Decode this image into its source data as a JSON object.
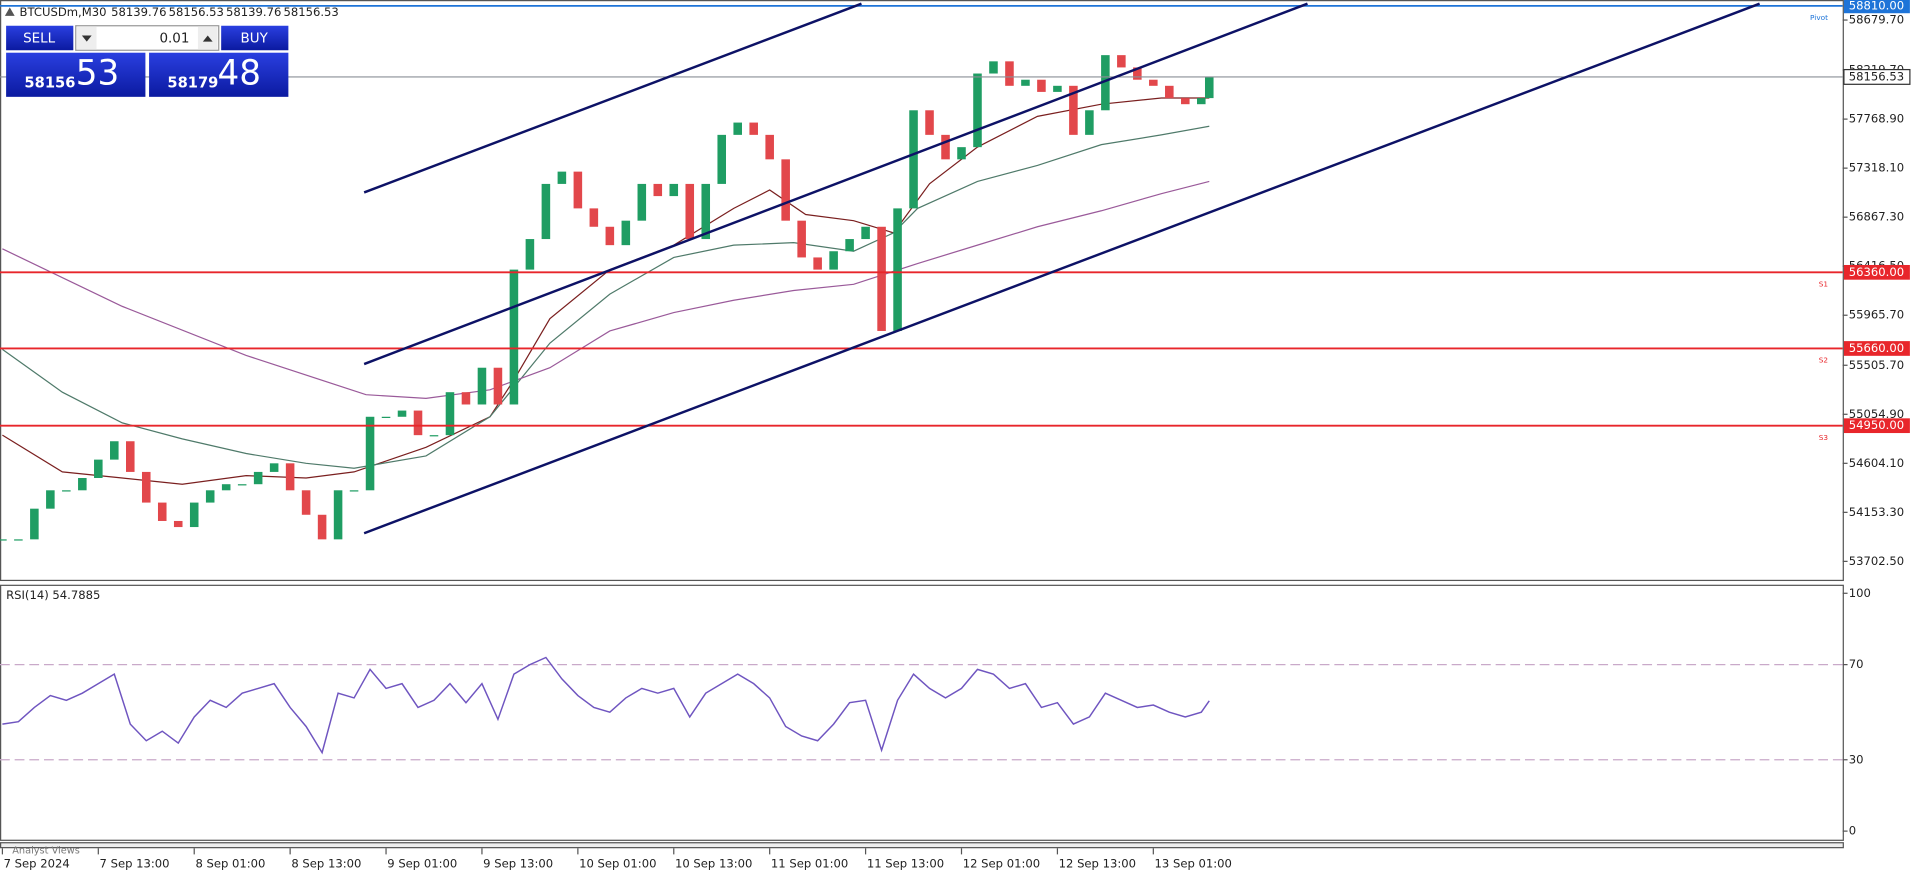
{
  "header": {
    "symbol": "BTCUSDm,M30",
    "ohlc": [
      58139.76,
      58156.53,
      58139.76,
      58156.53
    ]
  },
  "trade_panel": {
    "sell": "SELL",
    "buy": "BUY",
    "volume": "0.01",
    "bid_big": "58156",
    "bid_small": "53",
    "ask_big": "58179",
    "ask_small": "48"
  },
  "footer": "Analyst Views",
  "chart_data": [
    {
      "type": "candlestick",
      "x": [
        0,
        4,
        8,
        12,
        16,
        20,
        24,
        28,
        32,
        36,
        40,
        44,
        48,
        52,
        56,
        60,
        64,
        68,
        72,
        76,
        80,
        84,
        88,
        92,
        96,
        100,
        104,
        108,
        112,
        116,
        120,
        124,
        128,
        132,
        136,
        140,
        144,
        148,
        152,
        156,
        160,
        164,
        168,
        172,
        176,
        180,
        184,
        188,
        192,
        196,
        200,
        204,
        208,
        212,
        216,
        220,
        224,
        228,
        232,
        236,
        240,
        244,
        248,
        252,
        256,
        260,
        264,
        268,
        272,
        276,
        280,
        284,
        288,
        292,
        296,
        300,
        302
      ],
      "series": [
        {
          "up_color": "#1f9d63",
          "down_color": "#e2474b",
          "values": [
            53905,
            53905,
            54187,
            54356,
            54356,
            54469,
            54638,
            54807,
            54525,
            54243,
            54074,
            54018,
            54243,
            54356,
            54412,
            54412,
            54525,
            54604,
            54356,
            54131,
            53905,
            54356,
            54356,
            55032,
            55032,
            55089,
            54863,
            54863,
            55258,
            55145,
            55483,
            55145,
            56385,
            56666,
            57173,
            57286,
            56948,
            56779,
            56610,
            56835,
            57173,
            57061,
            57173,
            56666,
            57173,
            57624,
            57737,
            57624,
            57399,
            56835,
            56497,
            56385,
            56554,
            56666,
            56779,
            55821,
            56948,
            57850,
            57624,
            57399,
            57511,
            58188,
            58300,
            58075,
            58131,
            58019,
            58075,
            57624,
            57850,
            58357,
            58244,
            58131,
            58075,
            57962,
            57906,
            57962,
            58156.53
          ]
        }
      ],
      "overlays": [
        {
          "color": "#7a1f1f",
          "x": [
            0,
            15,
            30,
            45,
            61,
            76,
            88,
            106,
            122,
            128,
            137,
            152,
            168,
            183,
            192,
            201,
            213,
            223,
            232,
            244,
            259,
            275,
            290,
            302
          ],
          "values": [
            54863,
            54525,
            54469,
            54412,
            54491,
            54469,
            54525,
            54751,
            55032,
            55371,
            55934,
            56385,
            56610,
            56948,
            57117,
            56892,
            56835,
            56723,
            57174,
            57512,
            57794,
            57906,
            57963,
            57963
          ]
        },
        {
          "color": "#4f7a6a",
          "x": [
            0,
            15,
            30,
            45,
            61,
            76,
            88,
            106,
            122,
            137,
            152,
            168,
            183,
            198,
            213,
            223,
            229,
            244,
            259,
            275,
            290,
            302
          ],
          "values": [
            55652,
            55258,
            54976,
            54829,
            54694,
            54604,
            54559,
            54672,
            55032,
            55709,
            56160,
            56497,
            56610,
            56633,
            56554,
            56723,
            56948,
            57196,
            57343,
            57534,
            57624,
            57703
          ]
        },
        {
          "color": "#9a5a9a",
          "x": [
            0,
            30,
            61,
            91,
            106,
            122,
            137,
            152,
            168,
            183,
            198,
            213,
            229,
            244,
            259,
            275,
            290,
            302
          ],
          "values": [
            56576,
            56047,
            55596,
            55235,
            55201,
            55280,
            55483,
            55821,
            55990,
            56103,
            56193,
            56250,
            56441,
            56610,
            56779,
            56926,
            57083,
            57196
          ]
        }
      ],
      "xlim": [
        -0.6,
        460.5
      ],
      "xticks": [
        {
          "value": 0,
          "label": "7 Sep 2024"
        },
        {
          "value": 24,
          "label": "7 Sep 13:00"
        },
        {
          "value": 48,
          "label": "8 Sep 01:00"
        },
        {
          "value": 72,
          "label": "8 Sep 13:00"
        },
        {
          "value": 96,
          "label": "9 Sep 01:00"
        },
        {
          "value": 120,
          "label": "9 Sep 13:00"
        },
        {
          "value": 144,
          "label": "10 Sep 01:00"
        },
        {
          "value": 168,
          "label": "10 Sep 13:00"
        },
        {
          "value": 192,
          "label": "11 Sep 01:00"
        },
        {
          "value": 216,
          "label": "11 Sep 13:00"
        },
        {
          "value": 240,
          "label": "12 Sep 01:00"
        },
        {
          "value": 264,
          "label": "12 Sep 13:00"
        },
        {
          "value": 288,
          "label": "13 Sep 01:00"
        }
      ],
      "ylim": [
        53533,
        58864
      ],
      "yticks": [
        {
          "value": 58679.7,
          "label": "58679.70"
        },
        {
          "value": 58219.7,
          "label": "58219.70"
        },
        {
          "value": 57768.9,
          "label": "57768.90"
        },
        {
          "value": 57318.1,
          "label": "57318.10"
        },
        {
          "value": 56867.3,
          "label": "56867.30"
        },
        {
          "value": 56416.5,
          "label": "56416.50"
        },
        {
          "value": 55965.7,
          "label": "55965.70"
        },
        {
          "value": 55505.7,
          "label": "55505.70"
        },
        {
          "value": 55054.9,
          "label": "55054.90"
        },
        {
          "value": 54604.1,
          "label": "54604.10"
        },
        {
          "value": 54153.3,
          "label": "54153.30"
        },
        {
          "value": 53702.5,
          "label": "53702.50"
        }
      ],
      "levels": [
        {
          "value": 58810,
          "label": "58810.00",
          "name": "Pivot",
          "color": "#1e74d8"
        },
        {
          "value": 56360,
          "label": "56360.00",
          "name": "S1",
          "color": "#e8262b"
        },
        {
          "value": 55660,
          "label": "55660.00",
          "name": "S2",
          "color": "#e8262b"
        },
        {
          "value": 54950,
          "label": "54950.00",
          "name": "S3",
          "color": "#e8262b"
        }
      ],
      "last": 58156.53,
      "last_color": "#8a8f96"
    },
    {
      "type": "line",
      "title": "RSI(14) 54.7885",
      "x": [
        0,
        4,
        8,
        12,
        16,
        20,
        24,
        28,
        32,
        36,
        40,
        44,
        48,
        52,
        56,
        60,
        64,
        68,
        72,
        76,
        80,
        84,
        88,
        92,
        96,
        100,
        104,
        108,
        112,
        116,
        120,
        124,
        128,
        132,
        136,
        140,
        144,
        148,
        152,
        156,
        160,
        164,
        168,
        172,
        176,
        180,
        184,
        188,
        192,
        196,
        200,
        204,
        208,
        212,
        216,
        220,
        224,
        228,
        232,
        236,
        240,
        244,
        248,
        252,
        256,
        260,
        264,
        268,
        272,
        276,
        280,
        284,
        288,
        292,
        296,
        300,
        302
      ],
      "series": [
        {
          "color": "#6f55c0",
          "values": [
            45,
            46,
            52,
            57,
            55,
            58,
            62,
            66,
            45,
            38,
            42,
            37,
            48,
            55,
            52,
            58,
            60,
            62,
            52,
            44,
            33,
            58,
            56,
            68,
            60,
            62,
            52,
            55,
            62,
            54,
            62,
            47,
            66,
            70,
            73,
            64,
            57,
            52,
            50,
            56,
            60,
            58,
            60,
            48,
            58,
            62,
            66,
            62,
            56,
            44,
            40,
            38,
            45,
            54,
            55,
            34,
            55,
            66,
            60,
            56,
            60,
            68,
            66,
            60,
            62,
            52,
            54,
            45,
            48,
            58,
            55,
            52,
            53,
            50,
            48,
            50,
            54.7885
          ]
        }
      ],
      "xlim": [
        -0.6,
        460.5
      ],
      "ylim": [
        -3.6,
        103.6
      ],
      "yticks": [
        0,
        30,
        70,
        100
      ],
      "levels": [
        30,
        70
      ],
      "level_color": "#c9a9c9"
    }
  ]
}
